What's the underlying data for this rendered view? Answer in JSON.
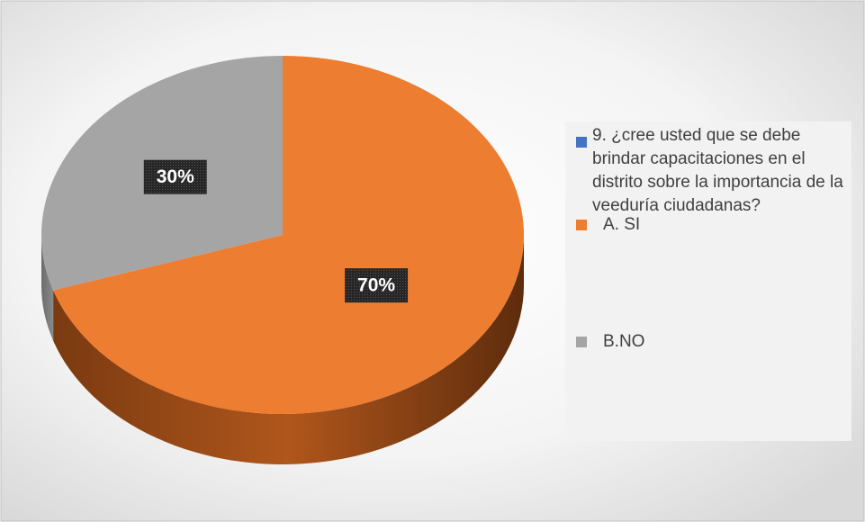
{
  "chart_data": {
    "type": "pie",
    "series_name": "9. ¿cree usted que se debe brindar capacitaciones en el distrito sobre la importancia de la veeduría ciudadanas?",
    "series_color": "#4472c4",
    "categories": [
      "A. SI",
      "B.NO"
    ],
    "values": [
      70,
      30
    ],
    "value_labels": [
      "70%",
      "30%"
    ],
    "colors": [
      "#ed7d31",
      "#a5a5a5"
    ]
  }
}
